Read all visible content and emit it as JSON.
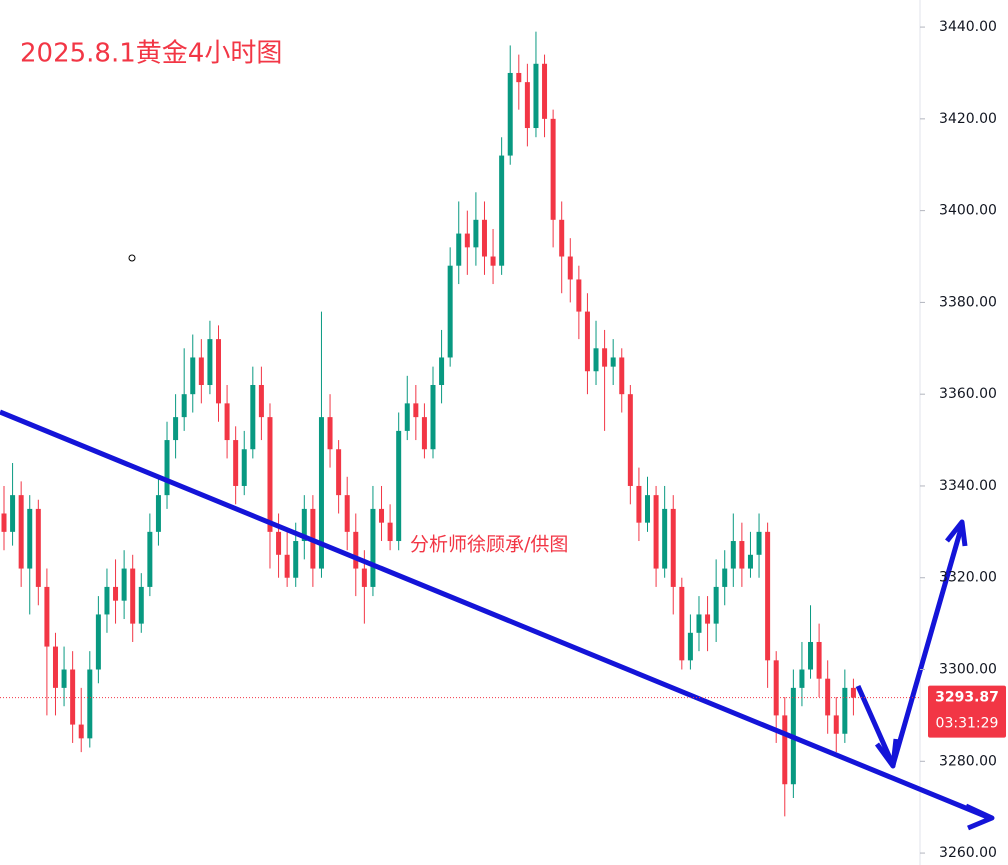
{
  "chart_data": {
    "type": "candlestick",
    "title": "2025.8.1黄金4小时图",
    "watermark": "分析师徐顾承/供图",
    "up_color": "#089981",
    "down_color": "#f23645",
    "ylim": [
      3257.4,
      3445.9
    ],
    "yticks": [
      {
        "value": 3260,
        "label": "3260.00"
      },
      {
        "value": 3280,
        "label": "3280.00"
      },
      {
        "value": 3300,
        "label": "3300.00"
      },
      {
        "value": 3320,
        "label": "3320.00"
      },
      {
        "value": 3340,
        "label": "3340.00"
      },
      {
        "value": 3360,
        "label": "3360.00"
      },
      {
        "value": 3380,
        "label": "3380.00"
      },
      {
        "value": 3400,
        "label": "3400.00"
      },
      {
        "value": 3420,
        "label": "3420.00"
      },
      {
        "value": 3440,
        "label": "3440.00"
      }
    ],
    "countdown": "03:31:29",
    "ohlc": [
      [
        3334,
        3340,
        3326,
        3330
      ],
      [
        3330,
        3345,
        3327,
        3338
      ],
      [
        3338,
        3341,
        3318,
        3322
      ],
      [
        3322,
        3338,
        3312,
        3335
      ],
      [
        3335,
        3337,
        3314,
        3318
      ],
      [
        3318,
        3322,
        3290,
        3305
      ],
      [
        3305,
        3308,
        3290,
        3296
      ],
      [
        3296,
        3305,
        3292,
        3300
      ],
      [
        3300,
        3304,
        3284,
        3288
      ],
      [
        3288,
        3296,
        3282,
        3285
      ],
      [
        3285,
        3304,
        3283,
        3300
      ],
      [
        3300,
        3316,
        3297,
        3312
      ],
      [
        3312,
        3322,
        3308,
        3318
      ],
      [
        3318,
        3324,
        3310,
        3315
      ],
      [
        3315,
        3326,
        3311,
        3322
      ],
      [
        3322,
        3325,
        3306,
        3310
      ],
      [
        3310,
        3321,
        3308,
        3318
      ],
      [
        3318,
        3334,
        3316,
        3330
      ],
      [
        3330,
        3342,
        3327,
        3338
      ],
      [
        3338,
        3354,
        3335,
        3350
      ],
      [
        3350,
        3360,
        3346,
        3355
      ],
      [
        3355,
        3370,
        3352,
        3360
      ],
      [
        3360,
        3373,
        3356,
        3368
      ],
      [
        3368,
        3372,
        3358,
        3362
      ],
      [
        3362,
        3376,
        3360,
        3372
      ],
      [
        3372,
        3375,
        3354,
        3358
      ],
      [
        3358,
        3362,
        3346,
        3350
      ],
      [
        3350,
        3353,
        3336,
        3340
      ],
      [
        3340,
        3352,
        3338,
        3348
      ],
      [
        3348,
        3366,
        3346,
        3362
      ],
      [
        3362,
        3366,
        3350,
        3355
      ],
      [
        3355,
        3358,
        3322,
        3330
      ],
      [
        3330,
        3334,
        3320,
        3325
      ],
      [
        3325,
        3330,
        3318,
        3320
      ],
      [
        3320,
        3332,
        3318,
        3328
      ],
      [
        3328,
        3338,
        3324,
        3335
      ],
      [
        3335,
        3338,
        3318,
        3322
      ],
      [
        3322,
        3378,
        3320,
        3355
      ],
      [
        3355,
        3360,
        3344,
        3348
      ],
      [
        3348,
        3350,
        3334,
        3338
      ],
      [
        3338,
        3342,
        3326,
        3330
      ],
      [
        3330,
        3334,
        3316,
        3322
      ],
      [
        3322,
        3326,
        3310,
        3318
      ],
      [
        3318,
        3340,
        3316,
        3335
      ],
      [
        3335,
        3340,
        3328,
        3332
      ],
      [
        3332,
        3336,
        3326,
        3328
      ],
      [
        3328,
        3356,
        3326,
        3352
      ],
      [
        3352,
        3364,
        3350,
        3358
      ],
      [
        3358,
        3362,
        3350,
        3355
      ],
      [
        3355,
        3358,
        3346,
        3348
      ],
      [
        3348,
        3366,
        3346,
        3362
      ],
      [
        3362,
        3374,
        3358,
        3368
      ],
      [
        3368,
        3392,
        3366,
        3388
      ],
      [
        3388,
        3402,
        3384,
        3395
      ],
      [
        3395,
        3400,
        3386,
        3392
      ],
      [
        3392,
        3404,
        3388,
        3398
      ],
      [
        3398,
        3402,
        3386,
        3390
      ],
      [
        3390,
        3396,
        3384,
        3388
      ],
      [
        3388,
        3416,
        3386,
        3412
      ],
      [
        3412,
        3436,
        3410,
        3430
      ],
      [
        3430,
        3434,
        3422,
        3428
      ],
      [
        3428,
        3432,
        3414,
        3418
      ],
      [
        3418,
        3439,
        3416,
        3432
      ],
      [
        3432,
        3434,
        3416,
        3420
      ],
      [
        3420,
        3422,
        3392,
        3398
      ],
      [
        3398,
        3402,
        3382,
        3390
      ],
      [
        3390,
        3394,
        3380,
        3385
      ],
      [
        3385,
        3388,
        3372,
        3378
      ],
      [
        3378,
        3382,
        3360,
        3365
      ],
      [
        3365,
        3376,
        3362,
        3370
      ],
      [
        3370,
        3374,
        3352,
        3366
      ],
      [
        3366,
        3372,
        3362,
        3368
      ],
      [
        3368,
        3370,
        3356,
        3360
      ],
      [
        3360,
        3362,
        3336,
        3340
      ],
      [
        3340,
        3344,
        3328,
        3332
      ],
      [
        3332,
        3342,
        3330,
        3338
      ],
      [
        3338,
        3340,
        3318,
        3322
      ],
      [
        3322,
        3340,
        3320,
        3335
      ],
      [
        3335,
        3338,
        3312,
        3318
      ],
      [
        3318,
        3320,
        3300,
        3302
      ],
      [
        3302,
        3312,
        3300,
        3308
      ],
      [
        3308,
        3316,
        3304,
        3312
      ],
      [
        3312,
        3316,
        3304,
        3310
      ],
      [
        3310,
        3324,
        3306,
        3318
      ],
      [
        3318,
        3326,
        3314,
        3322
      ],
      [
        3322,
        3334,
        3318,
        3328
      ],
      [
        3328,
        3332,
        3318,
        3322
      ],
      [
        3322,
        3330,
        3320,
        3325
      ],
      [
        3325,
        3334,
        3320,
        3330
      ],
      [
        3330,
        3332,
        3296,
        3302
      ],
      [
        3302,
        3304,
        3284,
        3290
      ],
      [
        3290,
        3294,
        3268,
        3275
      ],
      [
        3275,
        3300,
        3272,
        3296
      ],
      [
        3296,
        3306,
        3292,
        3300
      ],
      [
        3300,
        3314,
        3298,
        3306
      ],
      [
        3306,
        3310,
        3294,
        3298
      ],
      [
        3298,
        3302,
        3286,
        3290
      ],
      [
        3290,
        3294,
        3282,
        3286
      ],
      [
        3286,
        3300,
        3284,
        3296
      ],
      [
        3296,
        3298,
        3290,
        3293.87
      ]
    ]
  }
}
